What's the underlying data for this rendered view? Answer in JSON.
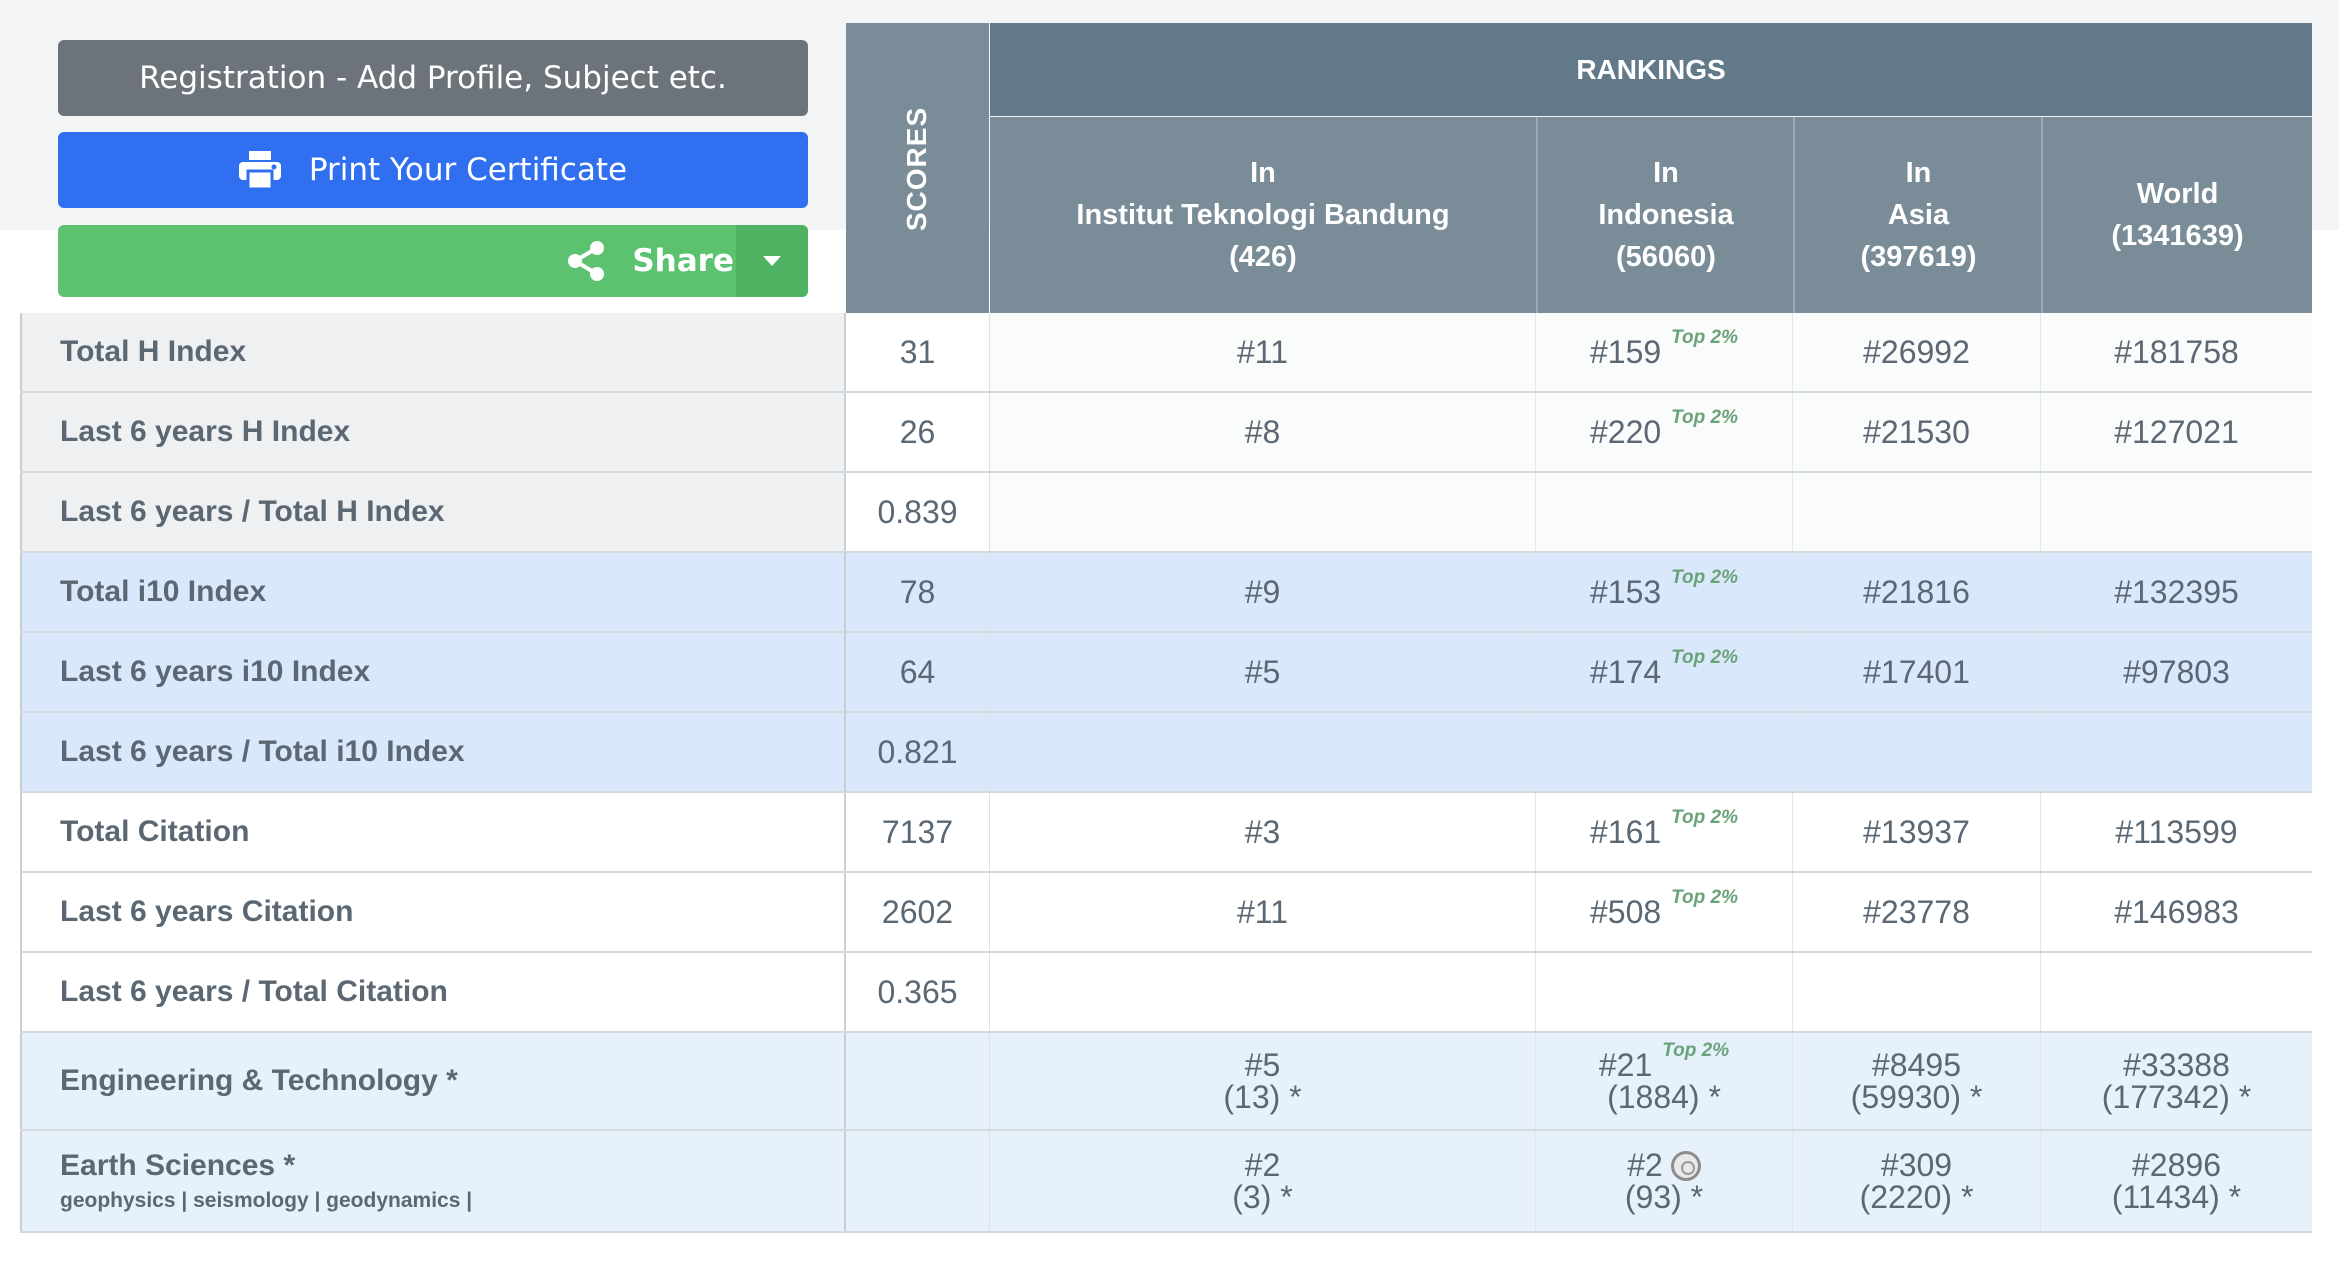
{
  "buttons": {
    "registration": "Registration - Add Profile, Subject etc.",
    "print": "Print Your Certificate",
    "share": "Share"
  },
  "header": {
    "scores": "SCORES",
    "rankings": "RANKINGS",
    "columns": [
      {
        "line1": "In",
        "line2": "Institut Teknologi Bandung",
        "line3": "(426)"
      },
      {
        "line1": "In",
        "line2": "Indonesia",
        "line3": "(56060)"
      },
      {
        "line1": "In",
        "line2": "Asia",
        "line3": "(397619)"
      },
      {
        "line1": "World",
        "line2": "(1341639)"
      }
    ]
  },
  "badge_text": "Top 2%",
  "rows": [
    {
      "label": "Total H Index",
      "score": "31",
      "r1": "#11",
      "r2": "#159",
      "r2_top": "Top 2%",
      "r3": "#26992",
      "r4": "#181758"
    },
    {
      "label": "Last 6 years H Index",
      "score": "26",
      "r1": "#8",
      "r2": "#220",
      "r2_top": "Top 2%",
      "r3": "#21530",
      "r4": "#127021"
    },
    {
      "label": "Last 6 years / Total H Index",
      "score": "0.839"
    },
    {
      "label": "Total i10 Index",
      "score": "78",
      "r1": "#9",
      "r2": "#153",
      "r2_top": "Top 2%",
      "r3": "#21816",
      "r4": "#132395"
    },
    {
      "label": "Last 6 years i10 Index",
      "score": "64",
      "r1": "#5",
      "r2": "#174",
      "r2_top": "Top 2%",
      "r3": "#17401",
      "r4": "#97803"
    },
    {
      "label": "Last 6 years / Total i10 Index",
      "score": "0.821"
    },
    {
      "label": "Total Citation",
      "score": "7137",
      "r1": "#3",
      "r2": "#161",
      "r2_top": "Top 2%",
      "r3": "#13937",
      "r4": "#113599"
    },
    {
      "label": "Last 6 years Citation",
      "score": "2602",
      "r1": "#11",
      "r2": "#508",
      "r2_top": "Top 2%",
      "r3": "#23778",
      "r4": "#146983"
    },
    {
      "label": "Last 6 years / Total Citation",
      "score": "0.365"
    }
  ],
  "subjects": [
    {
      "label": "Engineering & Technology *",
      "r1": "#5",
      "r1b": "(13) *",
      "r2": "#21",
      "r2_top": "Top 2%",
      "r2b": "(1884) *",
      "r3": "#8495",
      "r3b": "(59930) *",
      "r4": "#33388",
      "r4b": "(177342) *"
    },
    {
      "label": "Earth Sciences *",
      "sub": "geophysics | seismology | geodynamics |",
      "r1": "#2",
      "r1b": "(3) *",
      "r2": "#2",
      "r2b": "(93) *",
      "r3": "#309",
      "r3b": "(2220) *",
      "r4": "#2896",
      "r4b": "(11434) *"
    }
  ]
}
